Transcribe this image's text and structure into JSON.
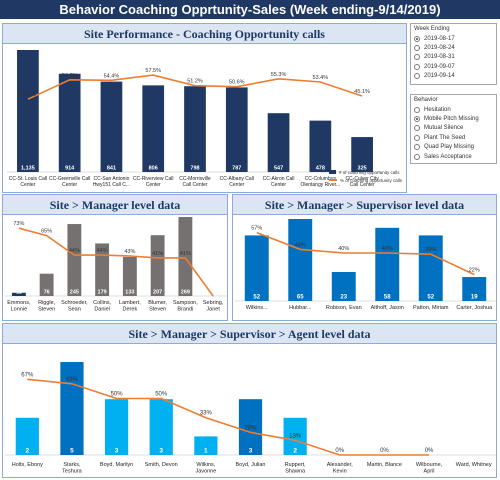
{
  "header": {
    "title": "Behavior Coaching Opprtunity-Sales (Week ending-9/14/2019)"
  },
  "week_slicer": {
    "title": "Week Ending",
    "selected": "2019-08-17",
    "items": [
      "2019-08-17",
      "2019-08-24",
      "2019-08-31",
      "2019-09-07",
      "2019-09-14"
    ]
  },
  "behavior_slicer": {
    "title": "Behavior",
    "selected": "Mobile Pitch Missing",
    "items": [
      "Hesitation",
      "Mobile Pitch Missing",
      "Mutual Silence",
      "Plant The Seed",
      "Quad Play Missing",
      "Sales Acceptance"
    ]
  },
  "legend": {
    "bar_label": "# of coaching opportunity calls",
    "line_label": "% of coaching opportunity calls"
  },
  "colors": {
    "navy": "#1f3864",
    "gray": "#767171",
    "blue": "#0070c0",
    "lightblue": "#00b0f0",
    "orange": "#ed7d31"
  },
  "chart_data": [
    {
      "type": "bar",
      "title": "Site Performance - Coaching Opportunity calls",
      "categories": [
        "CC-St. Louis Call Center",
        "CC-Greenville Call Center",
        "CC-San Antonio Hwy151 Call C...",
        "CC-Riverview Call Center",
        "CC-Morrisville Call Center",
        "CC-Albany Call Center",
        "CC-Akron Call Center",
        "CC-Columbus Olentangy River...",
        "CC-Culver City Call Center"
      ],
      "series": [
        {
          "name": "# of coaching opportunity calls",
          "type": "bar",
          "values": [
            1135,
            914,
            841,
            806,
            798,
            787,
            547,
            478,
            325
          ]
        },
        {
          "name": "% of coaching opportunity calls",
          "type": "line",
          "values": [
            43.2,
            54.7,
            54.4,
            57.5,
            51.2,
            50.6,
            55.3,
            53.4,
            45.1
          ]
        }
      ],
      "line_labels": [
        "43.2%",
        "54.7%",
        "54.4%",
        "57.5%",
        "51.2%",
        "50.6%",
        "55.3%",
        "53.4%",
        "45.1%"
      ],
      "bar_labels": [
        "1,135",
        "914",
        "841",
        "806",
        "798",
        "787",
        "547",
        "478",
        "325"
      ]
    },
    {
      "type": "bar",
      "title": "Site > Manager level data",
      "categories": [
        "Emmons, Lonnie",
        "Riggle, Steven",
        "Schroeder, Sean",
        "Collins, Daniel",
        "Lambert, Derek",
        "Blumer, Steven",
        "Sampson, Brandi",
        "Sebring, Janet"
      ],
      "series": [
        {
          "name": "# of coaching opportunity calls",
          "type": "bar",
          "values": [
            11,
            76,
            245,
            179,
            133,
            207,
            269,
            0
          ]
        },
        {
          "name": "% of coaching opportunity calls",
          "type": "line",
          "values": [
            73,
            65,
            44,
            44,
            43,
            41,
            41,
            0
          ]
        }
      ],
      "line_labels": [
        "73%",
        "65%",
        "44%",
        "44%",
        "43%",
        "41%",
        "41%",
        ""
      ],
      "bar_labels": [
        "11",
        "76",
        "245",
        "179",
        "133",
        "207",
        "269",
        ""
      ]
    },
    {
      "type": "bar",
      "title": "Site > Manager > Supervisor level data",
      "categories": [
        "Wilkins...",
        "Hubbar...",
        "Robison, Evan",
        "Althoff, Jason",
        "Patton, Miriam",
        "Carter, Joshua"
      ],
      "series": [
        {
          "name": "# of coaching opportunity calls",
          "type": "bar",
          "values": [
            52,
            65,
            23,
            58,
            52,
            19
          ]
        },
        {
          "name": "% of coaching opportunity calls",
          "type": "line",
          "values": [
            57,
            43,
            40,
            40,
            39,
            22
          ]
        }
      ],
      "line_labels": [
        "57%",
        "43%",
        "40%",
        "40%",
        "39%",
        "22%"
      ],
      "bar_labels": [
        "52",
        "65",
        "23",
        "58",
        "52",
        "19"
      ]
    },
    {
      "type": "bar",
      "title": "Site > Manager > Supervisor > Agent level data",
      "categories": [
        "Holts, Ebony",
        "Starks, Teshura",
        "Boyd, Marilyn",
        "Smith, Devon",
        "Wilkins, Javonne",
        "Boyd, Julian",
        "Ruppert, Shawna",
        "Alexander, Kevin",
        "Martin, Blance",
        "Wilbourne, April",
        "Ward, Whitney"
      ],
      "series": [
        {
          "name": "# of coaching opportunity calls",
          "type": "bar",
          "values": [
            2,
            5,
            3,
            3,
            1,
            3,
            2,
            0,
            0,
            0,
            0
          ]
        },
        {
          "name": "% of coaching opportunity calls",
          "type": "line",
          "values": [
            67,
            63,
            50,
            50,
            33,
            20,
            13,
            0,
            0,
            0,
            null
          ]
        }
      ],
      "line_labels": [
        "67%",
        "63%",
        "50%",
        "50%",
        "33%",
        "20%",
        "13%",
        "0%",
        "0%",
        "0%",
        ""
      ],
      "bar_labels": [
        "2",
        "5",
        "3",
        "3",
        "1",
        "3",
        "2",
        "",
        "",
        "",
        ""
      ]
    }
  ]
}
